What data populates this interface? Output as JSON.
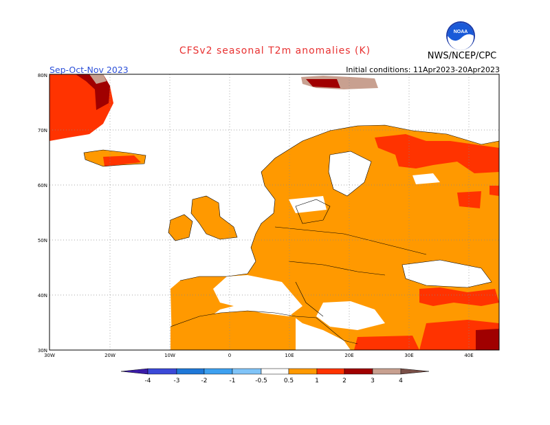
{
  "header": {
    "title": "CFSv2 seasonal T2m anomalies (K)",
    "agency": "NWS/NCEP/CPC",
    "period": "Sep-Oct-Nov 2023",
    "initial_conditions": "Initial conditions: 11Apr2023-20Apr2023",
    "logo_text": "NOAA"
  },
  "map": {
    "lat_labels": [
      "80N",
      "70N",
      "60N",
      "50N",
      "40N",
      "30N"
    ],
    "lon_labels": [
      "30W",
      "20W",
      "10W",
      "0",
      "10E",
      "20E",
      "30E",
      "40E"
    ],
    "grid": "dotted",
    "colors": {
      "ocean": "#ffffff",
      "anom_0_5_1": "#ff9900",
      "anom_1_2": "#ff3300",
      "anom_2_3": "#a00000",
      "anom_3_4": "#c8a090"
    }
  },
  "colorbar": {
    "labels": [
      "-4",
      "-3",
      "-2",
      "-1",
      "-0.5",
      "0.5",
      "1",
      "2",
      "3",
      "4"
    ],
    "colors": [
      "#3b1ca8",
      "#3b49d8",
      "#1f78d8",
      "#3da0f0",
      "#80c4f8",
      "#ffffff",
      "#ff9900",
      "#ff3300",
      "#a00000",
      "#c8a090",
      "#7a5048"
    ]
  }
}
